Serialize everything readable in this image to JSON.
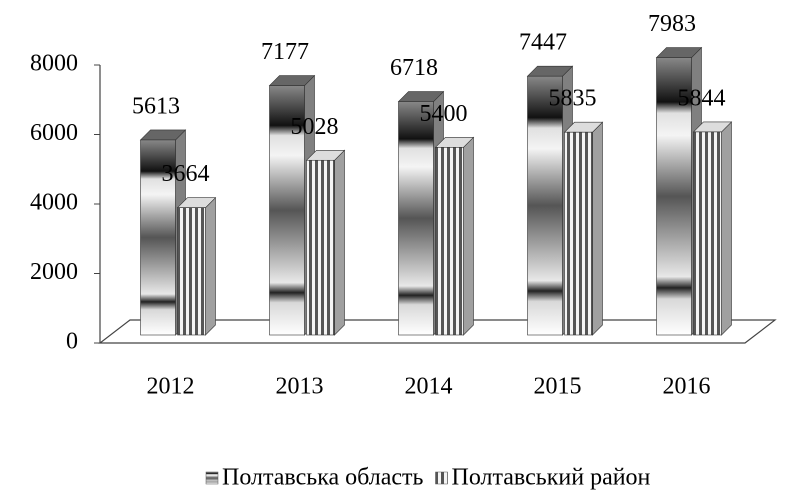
{
  "chart_data": {
    "type": "bar3d",
    "categories": [
      "2012",
      "2013",
      "2014",
      "2015",
      "2016"
    ],
    "series": [
      {
        "name": "Полтавська область",
        "color": "#808080",
        "values": [
          5613,
          7177,
          6718,
          7447,
          7983
        ]
      },
      {
        "name": "Полтавський район",
        "color": "#a0a0a0",
        "values": [
          3664,
          5028,
          5400,
          5835,
          5844
        ]
      }
    ],
    "ylim": [
      0,
      8000
    ],
    "yticks": [
      0,
      2000,
      4000,
      6000,
      8000
    ],
    "legend": "bottom"
  }
}
